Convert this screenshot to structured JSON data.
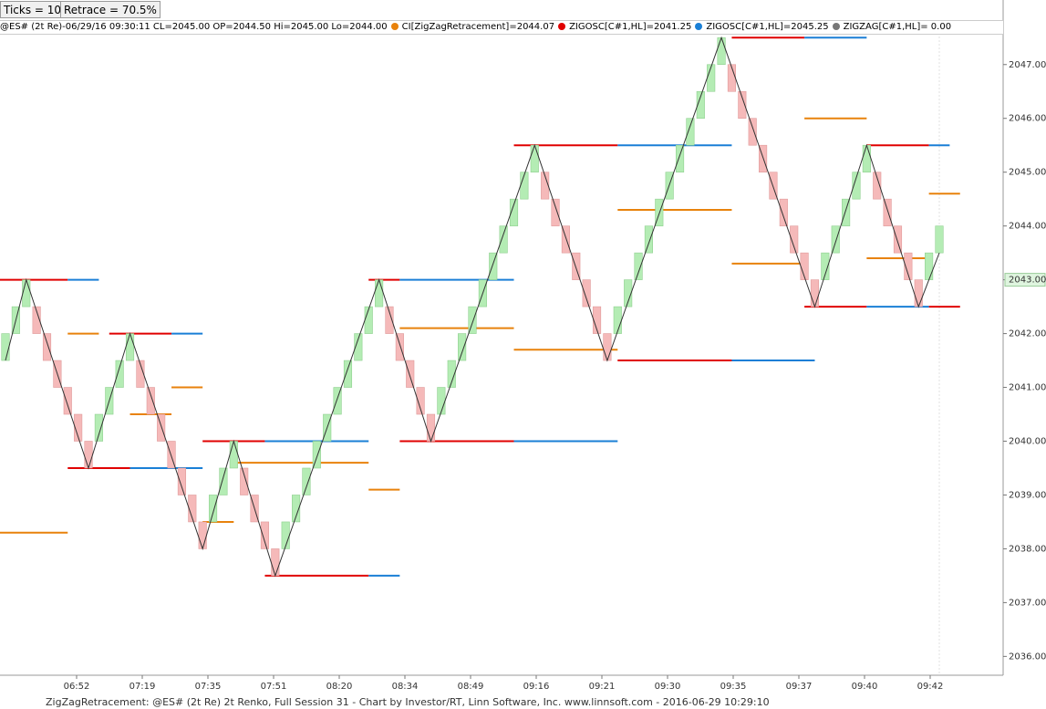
{
  "toolbar": {
    "ticks": "Ticks = 10",
    "retrace": "Retrace = 70.5%"
  },
  "legend": {
    "symbol": "@ES# (2t Re)-06/29/16 09:30:11 CL=2045.00 OP=2044.50 Hi=2045.00 Lo=2044.00",
    "items": [
      {
        "text": "CI[ZigZagRetracement]=2044.07",
        "color": "#e8820c"
      },
      {
        "text": "ZIGOSC[C#1,HL]=2041.25",
        "color": "#e00000"
      },
      {
        "text": "ZIGOSC[C#1,HL]=2045.25",
        "color": "#1a7fd6"
      },
      {
        "text": "ZIGZAG[C#1,HL]= 0.00",
        "color": "#777777"
      }
    ]
  },
  "footer": "ZigZagRetracement: @ES# (2t Re) 2t Renko, Full Session 31 - Chart by Investor/RT, Linn Software, Inc. www.linnsoft.com - 2016-06-29 10:29:10",
  "chart_data": {
    "type": "renko",
    "up_color": "#b4ecb4",
    "down_color": "#f5b9b9",
    "bricks": [
      [
        2041.5,
        2042
      ],
      [
        2042,
        2042.5
      ],
      [
        2042.5,
        2043
      ],
      [
        2042.5,
        2042
      ],
      [
        2042,
        2041.5
      ],
      [
        2041.5,
        2041
      ],
      [
        2041,
        2040.5
      ],
      [
        2040.5,
        2040
      ],
      [
        2040,
        2039.5
      ],
      [
        2040,
        2040.5
      ],
      [
        2040.5,
        2041
      ],
      [
        2041,
        2041.5
      ],
      [
        2041.5,
        2042
      ],
      [
        2041.5,
        2041
      ],
      [
        2041,
        2040.5
      ],
      [
        2040.5,
        2040
      ],
      [
        2040,
        2039.5
      ],
      [
        2039.5,
        2039
      ],
      [
        2039,
        2038.5
      ],
      [
        2038.5,
        2038
      ],
      [
        2038.5,
        2039
      ],
      [
        2039,
        2039.5
      ],
      [
        2039.5,
        2040
      ],
      [
        2039.5,
        2039
      ],
      [
        2039,
        2038.5
      ],
      [
        2038.5,
        2038
      ],
      [
        2038,
        2037.5
      ],
      [
        2038,
        2038.5
      ],
      [
        2038.5,
        2039
      ],
      [
        2039,
        2039.5
      ],
      [
        2039.5,
        2040
      ],
      [
        2040,
        2040.5
      ],
      [
        2040.5,
        2041
      ],
      [
        2041,
        2041.5
      ],
      [
        2041.5,
        2042
      ],
      [
        2042,
        2042.5
      ],
      [
        2042.5,
        2043
      ],
      [
        2042.5,
        2042
      ],
      [
        2042,
        2041.5
      ],
      [
        2041.5,
        2041
      ],
      [
        2041,
        2040.5
      ],
      [
        2040.5,
        2040
      ],
      [
        2040.5,
        2041
      ],
      [
        2041,
        2041.5
      ],
      [
        2041.5,
        2042
      ],
      [
        2042,
        2042.5
      ],
      [
        2042.5,
        2043
      ],
      [
        2043,
        2043.5
      ],
      [
        2043.5,
        2044
      ],
      [
        2044,
        2044.5
      ],
      [
        2044.5,
        2045
      ],
      [
        2045,
        2045.5
      ],
      [
        2045,
        2044.5
      ],
      [
        2044.5,
        2044
      ],
      [
        2044,
        2043.5
      ],
      [
        2043.5,
        2043
      ],
      [
        2043,
        2042.5
      ],
      [
        2042.5,
        2042
      ],
      [
        2042,
        2041.5
      ],
      [
        2042,
        2042.5
      ],
      [
        2042.5,
        2043
      ],
      [
        2043,
        2043.5
      ],
      [
        2043.5,
        2044
      ],
      [
        2044,
        2044.5
      ],
      [
        2044.5,
        2045
      ],
      [
        2045,
        2045.5
      ],
      [
        2045.5,
        2046
      ],
      [
        2046,
        2046.5
      ],
      [
        2046.5,
        2047
      ],
      [
        2047,
        2047.5
      ],
      [
        2047,
        2046.5
      ],
      [
        2046.5,
        2046
      ],
      [
        2046,
        2045.5
      ],
      [
        2045.5,
        2045
      ],
      [
        2045,
        2044.5
      ],
      [
        2044.5,
        2044
      ],
      [
        2044,
        2043.5
      ],
      [
        2043.5,
        2043
      ],
      [
        2043,
        2042.5
      ],
      [
        2043,
        2043.5
      ],
      [
        2043.5,
        2044
      ],
      [
        2044,
        2044.5
      ],
      [
        2044.5,
        2045
      ],
      [
        2045,
        2045.5
      ],
      [
        2045,
        2044.5
      ],
      [
        2044.5,
        2044
      ],
      [
        2044,
        2043.5
      ],
      [
        2043.5,
        2043
      ],
      [
        2043,
        2042.5
      ],
      [
        2043,
        2043.5
      ],
      [
        2043.5,
        2044
      ]
    ],
    "zigzag": {
      "color": "#333333",
      "x": [
        0,
        2,
        8,
        12,
        19,
        22,
        26,
        36,
        41,
        51,
        58,
        69,
        78,
        83,
        88,
        90
      ],
      "values": [
        2041.5,
        2043,
        2039.5,
        2042,
        2038,
        2040,
        2037.5,
        2043,
        2040,
        2045.5,
        2041.5,
        2047.5,
        2042.5,
        2045.5,
        2042.5,
        2043.5
      ]
    },
    "levels": [
      {
        "color": "#e00000",
        "value": 2043,
        "start": -1,
        "end": 6
      },
      {
        "color": "#1a7fd6",
        "value": 2043,
        "start": 6,
        "end": 9
      },
      {
        "color": "#e00000",
        "value": 2039.5,
        "start": 6,
        "end": 12
      },
      {
        "color": "#1a7fd6",
        "value": 2039.5,
        "start": 12,
        "end": 19
      },
      {
        "color": "#e00000",
        "value": 2042,
        "start": 10,
        "end": 16
      },
      {
        "color": "#1a7fd6",
        "value": 2042,
        "start": 16,
        "end": 19
      },
      {
        "color": "#e00000",
        "value": 2040,
        "start": 19,
        "end": 25
      },
      {
        "color": "#1a7fd6",
        "value": 2040,
        "start": 25,
        "end": 35
      },
      {
        "color": "#e00000",
        "value": 2037.5,
        "start": 25,
        "end": 35
      },
      {
        "color": "#1a7fd6",
        "value": 2037.5,
        "start": 35,
        "end": 38
      },
      {
        "color": "#e00000",
        "value": 2043,
        "start": 35,
        "end": 38
      },
      {
        "color": "#1a7fd6",
        "value": 2043,
        "start": 38,
        "end": 49
      },
      {
        "color": "#e00000",
        "value": 2040,
        "start": 38,
        "end": 49
      },
      {
        "color": "#1a7fd6",
        "value": 2040,
        "start": 49,
        "end": 59
      },
      {
        "color": "#e00000",
        "value": 2045.5,
        "start": 49,
        "end": 59
      },
      {
        "color": "#1a7fd6",
        "value": 2045.5,
        "start": 59,
        "end": 70
      },
      {
        "color": "#e00000",
        "value": 2041.5,
        "start": 59,
        "end": 70
      },
      {
        "color": "#1a7fd6",
        "value": 2041.5,
        "start": 70,
        "end": 78
      },
      {
        "color": "#e00000",
        "value": 2047.5,
        "start": 70,
        "end": 77
      },
      {
        "color": "#1a7fd6",
        "value": 2047.5,
        "start": 77,
        "end": 83
      },
      {
        "color": "#e00000",
        "value": 2042.5,
        "start": 77,
        "end": 83
      },
      {
        "color": "#1a7fd6",
        "value": 2042.5,
        "start": 83,
        "end": 89
      },
      {
        "color": "#e00000",
        "value": 2045.5,
        "start": 83,
        "end": 89
      },
      {
        "color": "#1a7fd6",
        "value": 2045.5,
        "start": 89,
        "end": 91
      },
      {
        "color": "#e00000",
        "value": 2042.5,
        "start": 89,
        "end": 92
      },
      {
        "color": "#e8820c",
        "value": 2038.3,
        "start": -1,
        "end": 6
      },
      {
        "color": "#e8820c",
        "value": 2042,
        "start": 6,
        "end": 9
      },
      {
        "color": "#e8820c",
        "value": 2040.5,
        "start": 12,
        "end": 16
      },
      {
        "color": "#e8820c",
        "value": 2041,
        "start": 16,
        "end": 19
      },
      {
        "color": "#e8820c",
        "value": 2038.5,
        "start": 19,
        "end": 22
      },
      {
        "color": "#e8820c",
        "value": 2039.6,
        "start": 22,
        "end": 35
      },
      {
        "color": "#e8820c",
        "value": 2039.1,
        "start": 35,
        "end": 38
      },
      {
        "color": "#e8820c",
        "value": 2042.1,
        "start": 38,
        "end": 49
      },
      {
        "color": "#e8820c",
        "value": 2041.7,
        "start": 49,
        "end": 59
      },
      {
        "color": "#e8820c",
        "value": 2044.3,
        "start": 59,
        "end": 70
      },
      {
        "color": "#e8820c",
        "value": 2043.3,
        "start": 70,
        "end": 77
      },
      {
        "color": "#e8820c",
        "value": 2046,
        "start": 77,
        "end": 83
      },
      {
        "color": "#e8820c",
        "value": 2043.4,
        "start": 83,
        "end": 89
      },
      {
        "color": "#e8820c",
        "value": 2044.6,
        "start": 89,
        "end": 92
      }
    ],
    "time_labels": [
      "06:52",
      "07:19",
      "07:35",
      "07:51",
      "08:20",
      "08:34",
      "08:49",
      "09:16",
      "09:21",
      "09:30",
      "09:35",
      "09:37",
      "09:40",
      "09:42"
    ],
    "ylim": [
      2035.65,
      2048.2
    ],
    "yticks": [
      {
        "value": 2036,
        "label": "2036.00"
      },
      {
        "value": 2037,
        "label": "2037.00"
      },
      {
        "value": 2038,
        "label": "2038.00"
      },
      {
        "value": 2039,
        "label": "2039.00"
      },
      {
        "value": 2040,
        "label": "2040.00"
      },
      {
        "value": 2041,
        "label": "2041.00"
      },
      {
        "value": 2042,
        "label": "2042.00"
      },
      {
        "value": 2043,
        "label": "2043.00"
      },
      {
        "value": 2044,
        "label": "2044.00"
      },
      {
        "value": 2045,
        "label": "2045.00"
      },
      {
        "value": 2046,
        "label": "2046.00"
      },
      {
        "value": 2047,
        "label": "2047.00"
      }
    ],
    "last_price": {
      "value": 2043,
      "label": "2043.00"
    }
  }
}
